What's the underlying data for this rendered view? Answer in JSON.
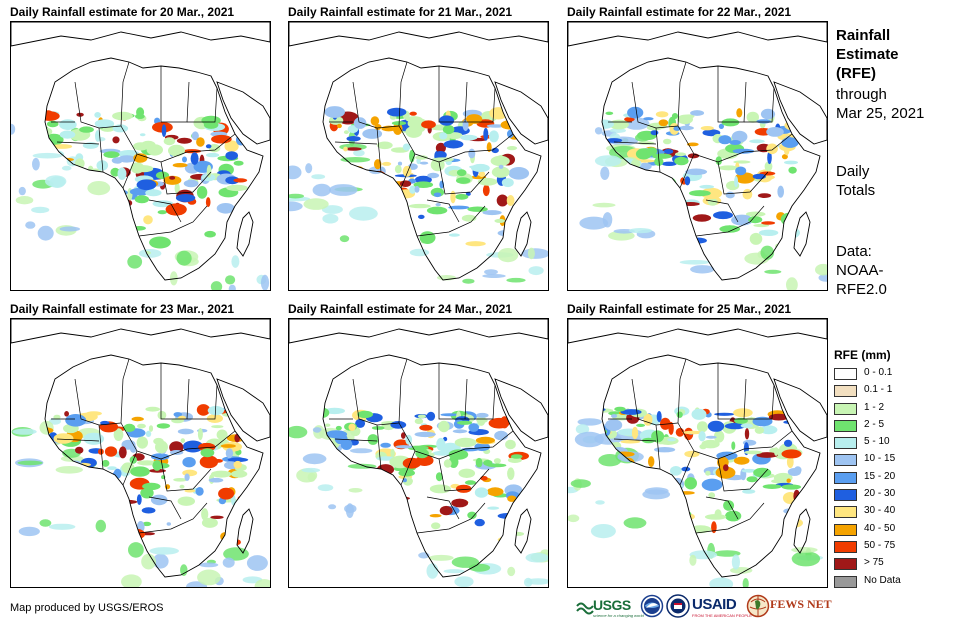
{
  "panels": [
    {
      "title": "Daily Rainfall estimate for 20 Mar., 2021",
      "seed": 11
    },
    {
      "title": "Daily Rainfall estimate for 21 Mar., 2021",
      "seed": 23
    },
    {
      "title": "Daily Rainfall estimate for 22 Mar., 2021",
      "seed": 37
    },
    {
      "title": "Daily Rainfall estimate for 23 Mar., 2021",
      "seed": 41
    },
    {
      "title": "Daily Rainfall estimate for 24 Mar., 2021",
      "seed": 53
    },
    {
      "title": "Daily Rainfall estimate for 25 Mar., 2021",
      "seed": 67
    }
  ],
  "side": {
    "title_line1": "Rainfall",
    "title_line2": "Estimate",
    "title_line3": "(RFE)",
    "through": "through",
    "date": "Mar 25, 2021",
    "daily": "Daily",
    "totals": "Totals",
    "data_label": "Data:",
    "data_source1": "NOAA-",
    "data_source2": "RFE2.0"
  },
  "legend": {
    "title": "RFE (mm)",
    "items": [
      {
        "label": "0 - 0.1",
        "color": "#ffffff"
      },
      {
        "label": "0.1 - 1",
        "color": "#f2dfc0"
      },
      {
        "label": "1 - 2",
        "color": "#c8f5b4"
      },
      {
        "label": "2 - 5",
        "color": "#6fe36f"
      },
      {
        "label": "5 - 10",
        "color": "#b8efef"
      },
      {
        "label": "10 - 15",
        "color": "#9ec4f2"
      },
      {
        "label": "15 - 20",
        "color": "#5a9ef0"
      },
      {
        "label": "20 - 30",
        "color": "#1f5fe0"
      },
      {
        "label": "30 - 40",
        "color": "#ffe680"
      },
      {
        "label": "40 - 50",
        "color": "#f5a300"
      },
      {
        "label": "50 - 75",
        "color": "#f03c00"
      },
      {
        "label": "> 75",
        "color": "#a01818"
      },
      {
        "label": "No Data",
        "color": "#999999"
      }
    ]
  },
  "credit": "Map produced by USGS/EROS",
  "logos": {
    "usgs": "USGS",
    "usgs_tagline": "science for a changing world",
    "usaid": "USAID",
    "usaid_tagline": "FROM THE AMERICAN PEOPLE",
    "fewsnet": "FEWS NET"
  }
}
